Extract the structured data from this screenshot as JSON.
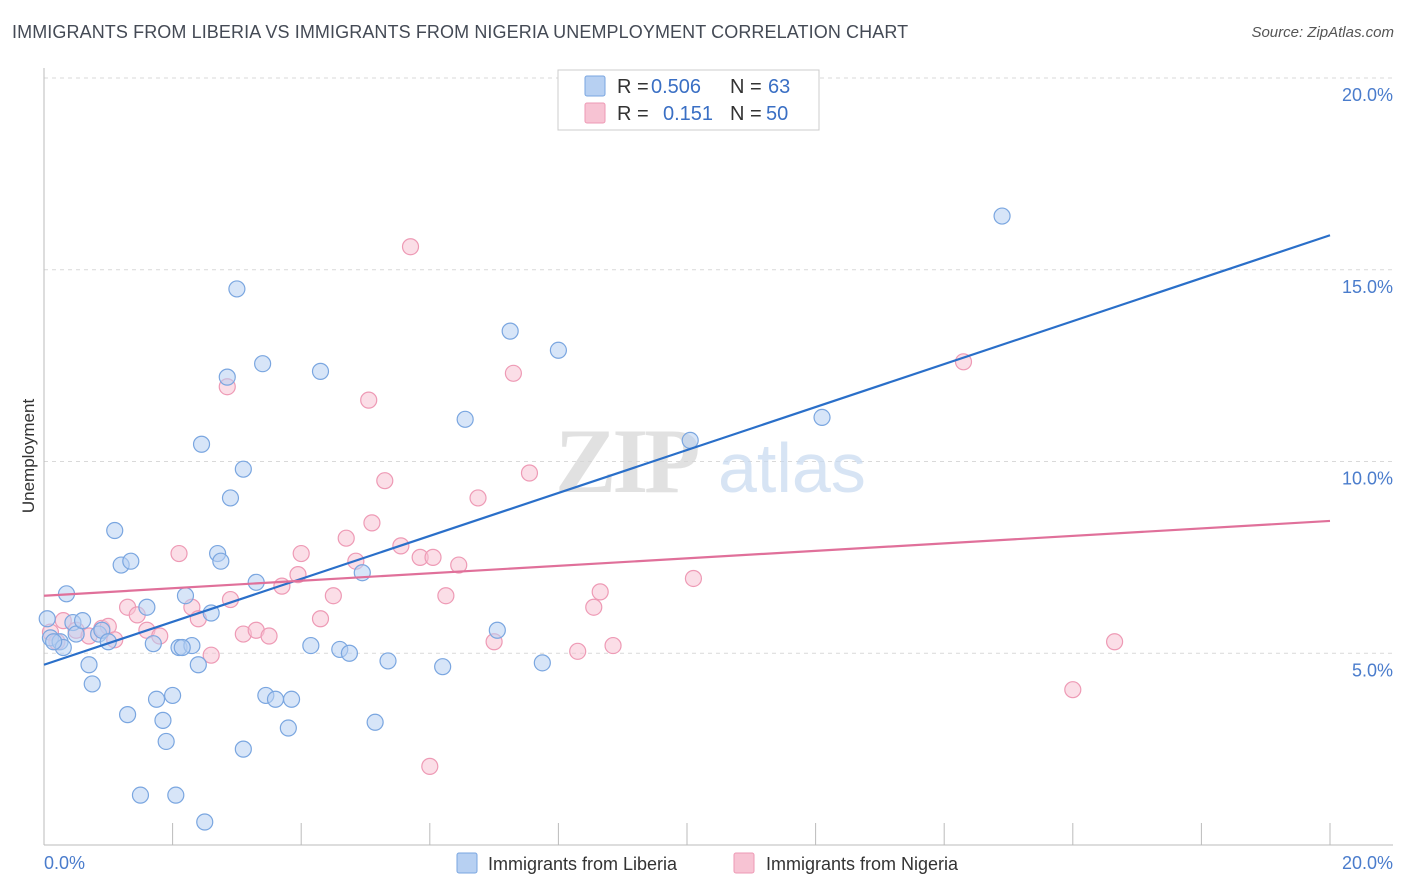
{
  "header": {
    "title": "IMMIGRANTS FROM LIBERIA VS IMMIGRANTS FROM NIGERIA UNEMPLOYMENT CORRELATION CHART",
    "source": "Source: ZipAtlas.com"
  },
  "watermark": {
    "zip": "ZIP",
    "atlas": "atlas"
  },
  "legend": {
    "r_label": "R =",
    "n_label": "N =",
    "rows": [
      {
        "r": "0.506",
        "n": "63"
      },
      {
        "r": "0.151",
        "n": "50"
      }
    ]
  },
  "colors": {
    "liberia_fill": "#b7d0f2",
    "liberia_stroke": "#7aa6e0",
    "liberia_line": "#2a6fc9",
    "nigeria_fill": "#f7c3d3",
    "nigeria_stroke": "#ee9ab5",
    "nigeria_line": "#e0709a",
    "accent_text": "#3a6fc4",
    "grid": "#d9d9d9"
  },
  "chart_data": {
    "type": "scatter",
    "title": "IMMIGRANTS FROM LIBERIA VS IMMIGRANTS FROM NIGERIA UNEMPLOYMENT CORRELATION CHART",
    "xlabel": "",
    "ylabel": "Unemployment",
    "xlim": [
      0,
      20
    ],
    "ylim": [
      0,
      20
    ],
    "x_tick_labels": [
      "0.0%",
      "20.0%"
    ],
    "y_ticks": [
      5,
      10,
      15,
      20
    ],
    "y_tick_labels": [
      "5.0%",
      "10.0%",
      "15.0%",
      "20.0%"
    ],
    "x_minor_ticks": [
      0,
      2,
      4,
      6,
      8,
      10,
      12,
      14,
      16,
      18,
      20
    ],
    "grid": true,
    "legend_position": "top-center",
    "series": [
      {
        "name": "Immigrants from Liberia",
        "color": "#b7d0f2",
        "r": 0.506,
        "n": 63,
        "trend": {
          "x": [
            0,
            20
          ],
          "y": [
            4.7,
            15.9
          ]
        },
        "points": [
          [
            0.1,
            5.4
          ],
          [
            0.25,
            5.3
          ],
          [
            0.3,
            5.15
          ],
          [
            0.35,
            6.55
          ],
          [
            0.45,
            5.8
          ],
          [
            0.5,
            5.5
          ],
          [
            0.6,
            5.85
          ],
          [
            0.7,
            4.7
          ],
          [
            0.75,
            4.2
          ],
          [
            0.85,
            5.5
          ],
          [
            0.9,
            5.6
          ],
          [
            1.0,
            5.3
          ],
          [
            1.1,
            8.2
          ],
          [
            1.2,
            7.3
          ],
          [
            1.3,
            3.4
          ],
          [
            1.35,
            7.4
          ],
          [
            1.5,
            1.3
          ],
          [
            1.6,
            6.2
          ],
          [
            1.7,
            5.25
          ],
          [
            1.75,
            3.8
          ],
          [
            1.85,
            3.25
          ],
          [
            1.9,
            2.7
          ],
          [
            2.0,
            3.9
          ],
          [
            2.05,
            1.3
          ],
          [
            2.1,
            5.15
          ],
          [
            2.2,
            6.5
          ],
          [
            2.3,
            5.2
          ],
          [
            2.4,
            4.7
          ],
          [
            2.45,
            10.45
          ],
          [
            2.5,
            0.6
          ],
          [
            2.6,
            6.05
          ],
          [
            2.7,
            7.6
          ],
          [
            2.75,
            7.4
          ],
          [
            2.85,
            12.2
          ],
          [
            2.9,
            9.05
          ],
          [
            3.0,
            14.5
          ],
          [
            3.1,
            9.8
          ],
          [
            3.1,
            2.5
          ],
          [
            3.3,
            6.85
          ],
          [
            3.4,
            12.55
          ],
          [
            3.45,
            3.9
          ],
          [
            3.6,
            3.8
          ],
          [
            3.8,
            3.05
          ],
          [
            3.85,
            3.8
          ],
          [
            4.15,
            5.2
          ],
          [
            4.3,
            12.35
          ],
          [
            4.6,
            5.1
          ],
          [
            4.75,
            5.0
          ],
          [
            4.95,
            7.1
          ],
          [
            5.15,
            3.2
          ],
          [
            5.35,
            4.8
          ],
          [
            6.2,
            4.65
          ],
          [
            6.55,
            11.1
          ],
          [
            7.05,
            5.6
          ],
          [
            7.25,
            13.4
          ],
          [
            7.75,
            4.75
          ],
          [
            8.0,
            12.9
          ],
          [
            10.05,
            10.55
          ],
          [
            12.1,
            11.15
          ],
          [
            14.9,
            16.4
          ],
          [
            0.05,
            5.9
          ],
          [
            0.15,
            5.3
          ],
          [
            2.15,
            5.15
          ]
        ]
      },
      {
        "name": "Immigrants from Nigeria",
        "color": "#f7c3d3",
        "r": 0.151,
        "n": 50,
        "trend": {
          "x": [
            0,
            20
          ],
          "y": [
            6.5,
            8.45
          ]
        },
        "points": [
          [
            0.1,
            5.55
          ],
          [
            0.2,
            5.3
          ],
          [
            0.3,
            5.85
          ],
          [
            0.5,
            5.6
          ],
          [
            0.7,
            5.45
          ],
          [
            0.9,
            5.65
          ],
          [
            1.0,
            5.7
          ],
          [
            1.1,
            5.35
          ],
          [
            1.3,
            6.2
          ],
          [
            1.45,
            6.0
          ],
          [
            1.6,
            5.6
          ],
          [
            1.8,
            5.45
          ],
          [
            2.1,
            7.6
          ],
          [
            2.3,
            6.2
          ],
          [
            2.4,
            5.9
          ],
          [
            2.6,
            4.95
          ],
          [
            2.85,
            11.95
          ],
          [
            2.9,
            6.4
          ],
          [
            3.1,
            5.5
          ],
          [
            3.3,
            5.6
          ],
          [
            3.5,
            5.45
          ],
          [
            3.7,
            6.75
          ],
          [
            3.95,
            7.05
          ],
          [
            4.0,
            7.6
          ],
          [
            4.3,
            5.9
          ],
          [
            4.5,
            6.5
          ],
          [
            4.7,
            8.0
          ],
          [
            4.85,
            7.4
          ],
          [
            5.05,
            11.6
          ],
          [
            5.1,
            8.4
          ],
          [
            5.3,
            9.5
          ],
          [
            5.55,
            7.8
          ],
          [
            5.7,
            15.6
          ],
          [
            5.85,
            7.5
          ],
          [
            6.0,
            2.05
          ],
          [
            6.05,
            7.5
          ],
          [
            6.25,
            6.5
          ],
          [
            6.45,
            7.3
          ],
          [
            6.75,
            9.05
          ],
          [
            7.0,
            5.3
          ],
          [
            7.3,
            12.3
          ],
          [
            7.55,
            9.7
          ],
          [
            8.3,
            5.05
          ],
          [
            8.55,
            6.2
          ],
          [
            8.65,
            6.6
          ],
          [
            8.85,
            5.2
          ],
          [
            10.1,
            6.95
          ],
          [
            14.3,
            12.6
          ],
          [
            16.0,
            4.05
          ],
          [
            16.65,
            5.3
          ]
        ]
      }
    ]
  },
  "bottom_legend": {
    "items": [
      "Immigrants from Liberia",
      "Immigrants from Nigeria"
    ]
  }
}
